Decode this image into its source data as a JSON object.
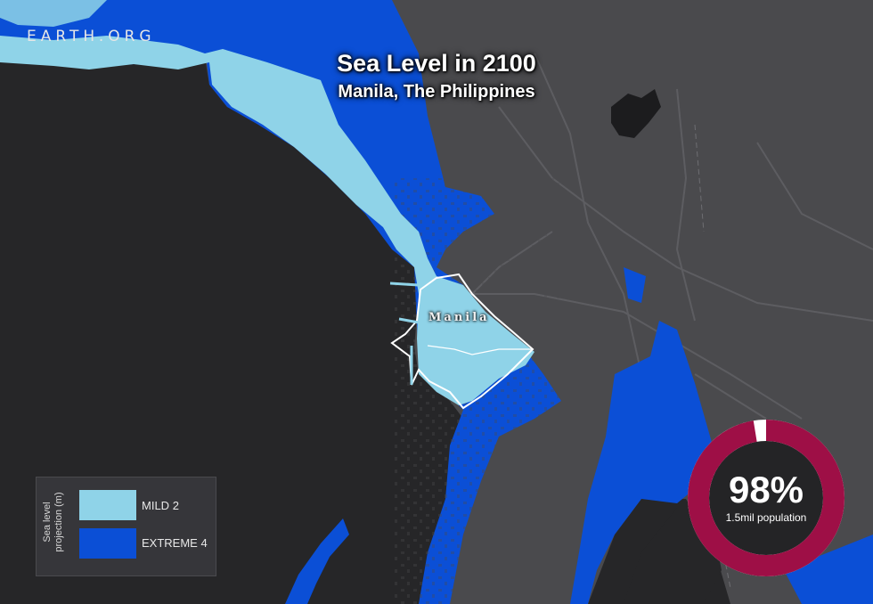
{
  "brand": "EARTH.ORG",
  "title": "Sea Level in 2100",
  "subtitle": "Manila, The Philippines",
  "city_label": "Manila",
  "legend": {
    "axis_label_line1": "Sea level",
    "axis_label_line2": "projection (m)",
    "items": [
      {
        "name": "MILD",
        "value": "2",
        "color": "#8fd3e8"
      },
      {
        "name": "EXTREME",
        "value": "4",
        "color": "#0b4fd6"
      }
    ]
  },
  "stat": {
    "percent": 98,
    "percent_label": "98%",
    "caption": "1.5mil population",
    "ring_color": "#9e0f46",
    "ring_track_color": "#ffffff"
  },
  "colors": {
    "water": "#262628",
    "land": "#4a4a4d",
    "mild": "#8fd3e8",
    "extreme": "#0b4fd6"
  }
}
